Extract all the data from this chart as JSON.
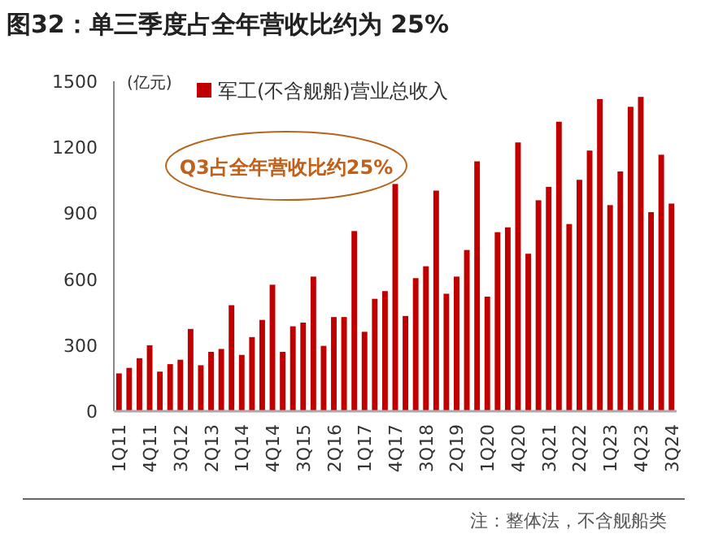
{
  "chart_data": {
    "type": "bar",
    "title": "图32：单三季度占全年营收比约为 25%",
    "ylabel": "(亿元)",
    "categories": [
      "1Q11",
      null,
      null,
      "4Q11",
      null,
      null,
      "3Q12",
      null,
      null,
      "2Q13",
      null,
      null,
      "1Q14",
      null,
      null,
      "4Q14",
      null,
      null,
      "3Q15",
      null,
      null,
      "2Q16",
      null,
      null,
      "1Q17",
      null,
      null,
      "4Q17",
      null,
      null,
      "3Q18",
      null,
      null,
      "2Q19",
      null,
      null,
      "1Q20",
      null,
      null,
      "4Q20",
      null,
      null,
      "3Q21",
      null,
      null,
      "2Q22",
      null,
      null,
      "1Q23",
      null,
      null,
      "4Q23",
      null,
      null,
      "3Q24"
    ],
    "series": [
      {
        "name": "军工(不含舰船)营业总收入",
        "color": "#c00000",
        "values": [
          172,
          197,
          241,
          300,
          180,
          214,
          234,
          374,
          209,
          270,
          283,
          482,
          256,
          337,
          415,
          575,
          270,
          386,
          403,
          612,
          297,
          428,
          428,
          819,
          361,
          511,
          546,
          1033,
          433,
          605,
          659,
          1003,
          534,
          612,
          733,
          1136,
          521,
          814,
          836,
          1222,
          716,
          959,
          1020,
          1316,
          851,
          1052,
          1185,
          1419,
          937,
          1090,
          1384,
          1429,
          905,
          1166,
          944
        ]
      }
    ],
    "ylim": [
      0,
      1500
    ],
    "yticks": [
      0,
      300,
      600,
      900,
      1200,
      1500
    ],
    "grid": false,
    "legend": "top",
    "annotations": [
      "Q3占全年营收比约25%",
      "注：整体法，不含舰船类"
    ]
  }
}
